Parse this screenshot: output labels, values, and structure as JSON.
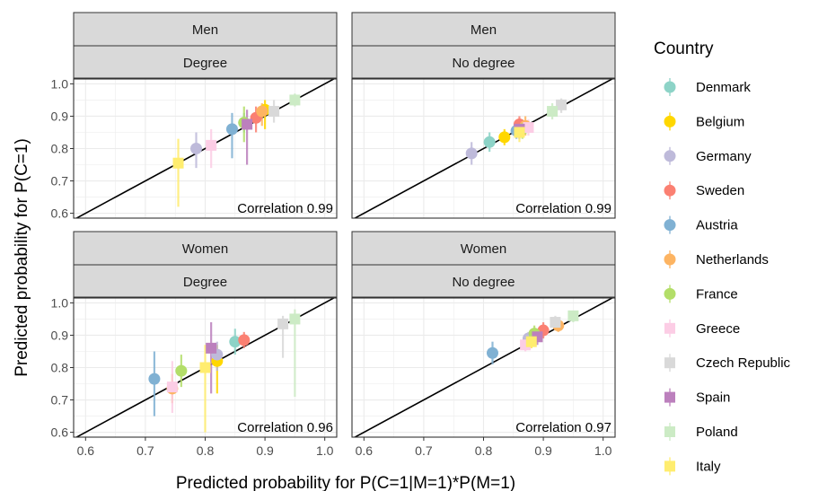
{
  "chart_data": {
    "type": "scatter",
    "xlabel": "Predicted probability for P(C=1|M=1)*P(M=1)",
    "ylabel": "Predicted probability for P(C=1)",
    "xlim": [
      0.58,
      1.02
    ],
    "ylim": [
      0.585,
      1.015
    ],
    "x_ticks": [
      "0.6",
      "0.7",
      "0.8",
      "0.9",
      "1.0"
    ],
    "y_ticks": [
      "0.6",
      "0.7",
      "0.8",
      "0.9",
      "1.0"
    ],
    "grid": true,
    "reference_line": "y = x",
    "legend": {
      "title": "Country",
      "position": "right",
      "items": [
        {
          "name": "Denmark",
          "color": "#8DD3C7",
          "shape": "circle"
        },
        {
          "name": "Belgium",
          "color": "#FFD700",
          "shape": "circle"
        },
        {
          "name": "Germany",
          "color": "#BEBADA",
          "shape": "circle"
        },
        {
          "name": "Sweden",
          "color": "#FB8072",
          "shape": "circle"
        },
        {
          "name": "Austria",
          "color": "#80B1D3",
          "shape": "circle"
        },
        {
          "name": "Netherlands",
          "color": "#FDB462",
          "shape": "circle"
        },
        {
          "name": "France",
          "color": "#B3DE69",
          "shape": "circle"
        },
        {
          "name": "Greece",
          "color": "#FCCDE5",
          "shape": "square"
        },
        {
          "name": "Czech Republic",
          "color": "#D9D9D9",
          "shape": "square"
        },
        {
          "name": "Spain",
          "color": "#BC80BD",
          "shape": "square"
        },
        {
          "name": "Poland",
          "color": "#CCEBC5",
          "shape": "square"
        },
        {
          "name": "Italy",
          "color": "#FFED6F",
          "shape": "square"
        }
      ]
    },
    "panels": [
      {
        "gender": "Men",
        "education": "Degree",
        "correlation_label": "Correlation 0.99",
        "points": [
          {
            "country": "Denmark",
            "x": 0.865,
            "y": 0.88,
            "lo": 0.85,
            "hi": 0.91
          },
          {
            "country": "Belgium",
            "x": 0.9,
            "y": 0.92,
            "lo": 0.86,
            "hi": 0.95
          },
          {
            "country": "Germany",
            "x": 0.785,
            "y": 0.8,
            "lo": 0.74,
            "hi": 0.85
          },
          {
            "country": "Sweden",
            "x": 0.885,
            "y": 0.895,
            "lo": 0.85,
            "hi": 0.93
          },
          {
            "country": "Austria",
            "x": 0.845,
            "y": 0.86,
            "lo": 0.77,
            "hi": 0.91
          },
          {
            "country": "Netherlands",
            "x": 0.895,
            "y": 0.915,
            "lo": 0.87,
            "hi": 0.94
          },
          {
            "country": "France",
            "x": 0.865,
            "y": 0.88,
            "lo": 0.82,
            "hi": 0.93
          },
          {
            "country": "Greece",
            "x": 0.81,
            "y": 0.81,
            "lo": 0.74,
            "hi": 0.86
          },
          {
            "country": "Czech Republic",
            "x": 0.915,
            "y": 0.915,
            "lo": 0.88,
            "hi": 0.95
          },
          {
            "country": "Spain",
            "x": 0.87,
            "y": 0.875,
            "lo": 0.75,
            "hi": 0.92
          },
          {
            "country": "Poland",
            "x": 0.95,
            "y": 0.95,
            "lo": 0.93,
            "hi": 0.97
          },
          {
            "country": "Italy",
            "x": 0.755,
            "y": 0.755,
            "lo": 0.62,
            "hi": 0.83
          }
        ]
      },
      {
        "gender": "Men",
        "education": "No degree",
        "correlation_label": "Correlation 0.99",
        "points": [
          {
            "country": "Denmark",
            "x": 0.81,
            "y": 0.82,
            "lo": 0.79,
            "hi": 0.85
          },
          {
            "country": "Belgium",
            "x": 0.835,
            "y": 0.835,
            "lo": 0.81,
            "hi": 0.86
          },
          {
            "country": "Germany",
            "x": 0.78,
            "y": 0.785,
            "lo": 0.75,
            "hi": 0.82
          },
          {
            "country": "Sweden",
            "x": 0.86,
            "y": 0.875,
            "lo": 0.84,
            "hi": 0.9
          },
          {
            "country": "Austria",
            "x": 0.855,
            "y": 0.855,
            "lo": 0.83,
            "hi": 0.88
          },
          {
            "country": "Netherlands",
            "x": 0.87,
            "y": 0.87,
            "lo": 0.84,
            "hi": 0.9
          },
          {
            "country": "France",
            "x": 0.865,
            "y": 0.86,
            "lo": 0.83,
            "hi": 0.89
          },
          {
            "country": "Greece",
            "x": 0.875,
            "y": 0.865,
            "lo": 0.84,
            "hi": 0.89
          },
          {
            "country": "Czech Republic",
            "x": 0.93,
            "y": 0.935,
            "lo": 0.91,
            "hi": 0.955
          },
          {
            "country": "Spain",
            "x": 0.86,
            "y": 0.86,
            "lo": 0.83,
            "hi": 0.89
          },
          {
            "country": "Poland",
            "x": 0.915,
            "y": 0.915,
            "lo": 0.89,
            "hi": 0.94
          },
          {
            "country": "Italy",
            "x": 0.86,
            "y": 0.85,
            "lo": 0.82,
            "hi": 0.88
          }
        ]
      },
      {
        "gender": "Women",
        "education": "Degree",
        "correlation_label": "Correlation 0.96",
        "points": [
          {
            "country": "Denmark",
            "x": 0.85,
            "y": 0.88,
            "lo": 0.84,
            "hi": 0.92
          },
          {
            "country": "Belgium",
            "x": 0.82,
            "y": 0.82,
            "lo": 0.72,
            "hi": 0.87
          },
          {
            "country": "Germany",
            "x": 0.82,
            "y": 0.84,
            "lo": 0.79,
            "hi": 0.88
          },
          {
            "country": "Sweden",
            "x": 0.865,
            "y": 0.885,
            "lo": 0.86,
            "hi": 0.91
          },
          {
            "country": "Austria",
            "x": 0.715,
            "y": 0.765,
            "lo": 0.65,
            "hi": 0.85
          },
          {
            "country": "Netherlands",
            "x": 0.745,
            "y": 0.735,
            "lo": 0.69,
            "hi": 0.78
          },
          {
            "country": "France",
            "x": 0.76,
            "y": 0.79,
            "lo": 0.74,
            "hi": 0.84
          },
          {
            "country": "Greece",
            "x": 0.745,
            "y": 0.74,
            "lo": 0.66,
            "hi": 0.82
          },
          {
            "country": "Czech Republic",
            "x": 0.93,
            "y": 0.935,
            "lo": 0.83,
            "hi": 0.96
          },
          {
            "country": "Spain",
            "x": 0.81,
            "y": 0.86,
            "lo": 0.72,
            "hi": 0.94
          },
          {
            "country": "Poland",
            "x": 0.95,
            "y": 0.95,
            "lo": 0.71,
            "hi": 0.98
          },
          {
            "country": "Italy",
            "x": 0.8,
            "y": 0.8,
            "lo": 0.6,
            "hi": 0.87
          }
        ]
      },
      {
        "gender": "Women",
        "education": "No degree",
        "correlation_label": "Correlation 0.97",
        "points": [
          {
            "country": "Denmark",
            "x": 0.885,
            "y": 0.895,
            "lo": 0.87,
            "hi": 0.92
          },
          {
            "country": "Belgium",
            "x": 0.88,
            "y": 0.885,
            "lo": 0.86,
            "hi": 0.91
          },
          {
            "country": "Germany",
            "x": 0.875,
            "y": 0.89,
            "lo": 0.87,
            "hi": 0.91
          },
          {
            "country": "Sweden",
            "x": 0.9,
            "y": 0.915,
            "lo": 0.89,
            "hi": 0.94
          },
          {
            "country": "Austria",
            "x": 0.815,
            "y": 0.845,
            "lo": 0.81,
            "hi": 0.88
          },
          {
            "country": "Netherlands",
            "x": 0.925,
            "y": 0.93,
            "lo": 0.91,
            "hi": 0.95
          },
          {
            "country": "France",
            "x": 0.885,
            "y": 0.905,
            "lo": 0.88,
            "hi": 0.93
          },
          {
            "country": "Greece",
            "x": 0.87,
            "y": 0.87,
            "lo": 0.85,
            "hi": 0.89
          },
          {
            "country": "Czech Republic",
            "x": 0.92,
            "y": 0.94,
            "lo": 0.92,
            "hi": 0.96
          },
          {
            "country": "Spain",
            "x": 0.89,
            "y": 0.895,
            "lo": 0.87,
            "hi": 0.92
          },
          {
            "country": "Poland",
            "x": 0.95,
            "y": 0.96,
            "lo": 0.94,
            "hi": 0.97
          },
          {
            "country": "Italy",
            "x": 0.88,
            "y": 0.88,
            "lo": 0.86,
            "hi": 0.9
          }
        ]
      }
    ]
  }
}
